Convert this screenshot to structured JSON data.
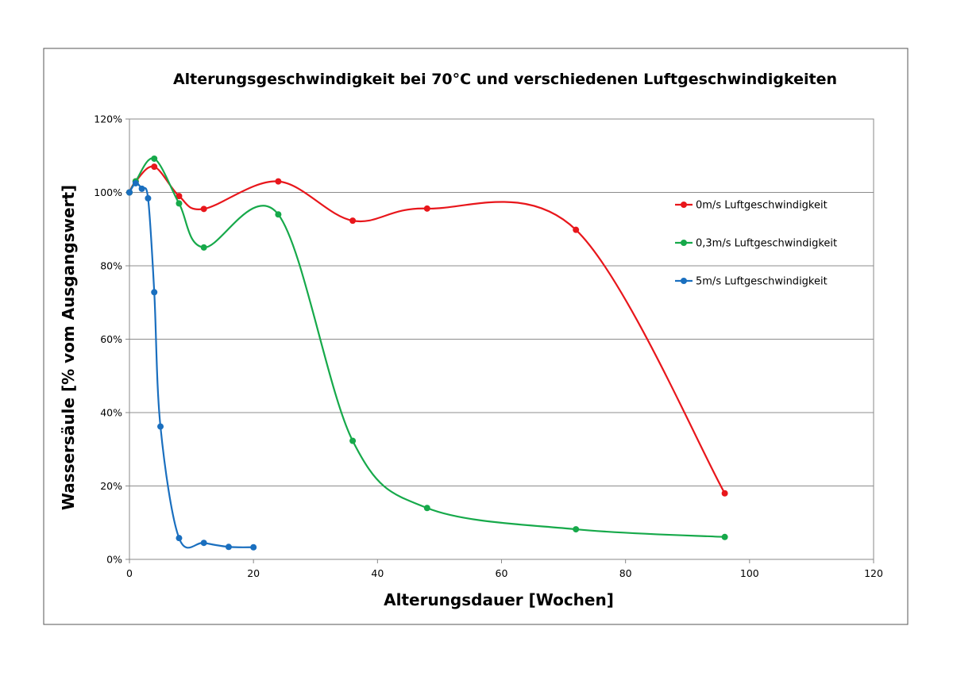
{
  "chart_data": {
    "type": "line",
    "title": "Alterungsgeschwindigkeit bei 70°C und verschiedenen Luftgeschwindigkeiten",
    "xlabel": "Alterungsdauer [Wochen]",
    "ylabel": "Wassersäule [% vom Ausgangswert]",
    "xlim": [
      0,
      120
    ],
    "ylim": [
      0,
      120
    ],
    "x_ticks": [
      0,
      20,
      40,
      60,
      80,
      100,
      120
    ],
    "x_tick_labels": [
      "0",
      "20",
      "40",
      "60",
      "80",
      "100",
      "120"
    ],
    "y_ticks": [
      0,
      20,
      40,
      60,
      80,
      100,
      120
    ],
    "y_tick_labels": [
      "0%",
      "20%",
      "40%",
      "60%",
      "80%",
      "100%",
      "120%"
    ],
    "grid": "horizontal",
    "legend_position": "right",
    "smoothed": true,
    "series": [
      {
        "name": "0m/s Luftgeschwindigkeit",
        "color": "#e8161b",
        "x": [
          0,
          1,
          4,
          8,
          12,
          24,
          36,
          48,
          72,
          96
        ],
        "y": [
          100,
          103,
          107,
          99,
          95.5,
          103,
          92.3,
          95.6,
          89.8,
          18
        ]
      },
      {
        "name": "0,3m/s Luftgeschwindigkeit",
        "color": "#16a94a",
        "x": [
          0,
          1,
          4,
          8,
          12,
          24,
          36,
          48,
          72,
          96
        ],
        "y": [
          100,
          103,
          109.2,
          97,
          85,
          94,
          32.3,
          14,
          8.2,
          6.1
        ]
      },
      {
        "name": "5m/s Luftgeschwindigkeit",
        "color": "#1a6fbf",
        "x": [
          0,
          1,
          2,
          3,
          4,
          5,
          8,
          12,
          16,
          20
        ],
        "y": [
          100,
          102.5,
          101,
          98.4,
          72.8,
          36.2,
          5.8,
          4.5,
          3.4,
          3.3
        ]
      }
    ]
  }
}
